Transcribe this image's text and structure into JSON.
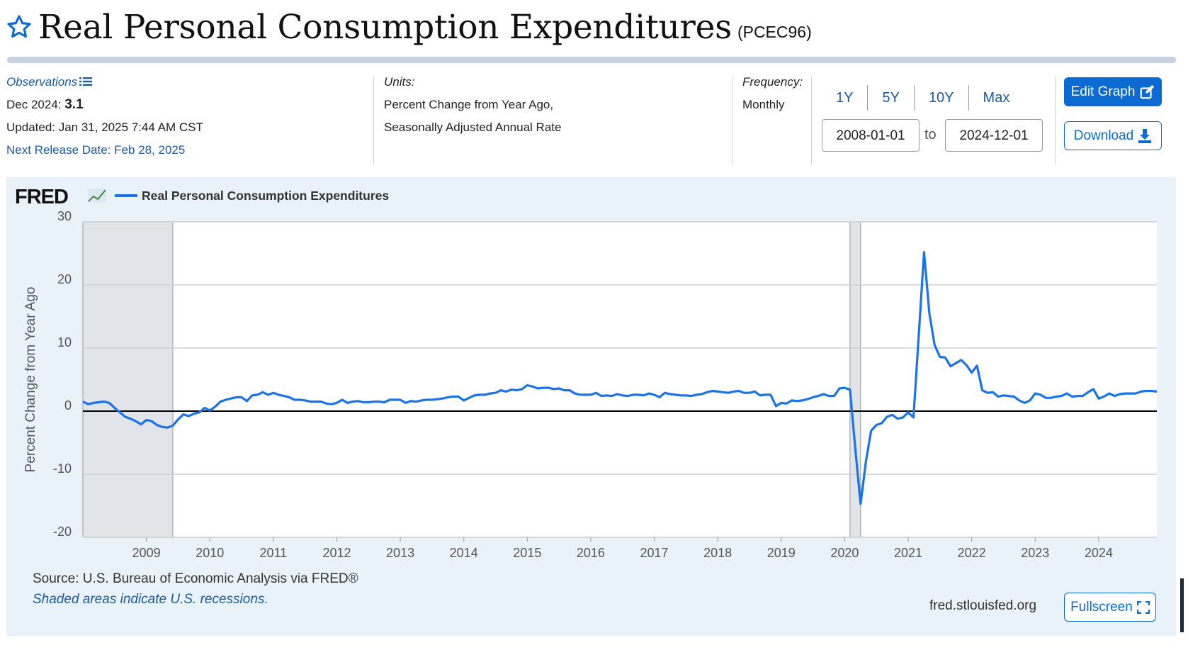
{
  "header": {
    "title": "Real Personal Consumption Expenditures",
    "series_id": "(PCEC96)"
  },
  "meta": {
    "observations_label": "Observations",
    "observation_date": "Dec 2024:",
    "observation_value": "3.1",
    "updated": "Updated: Jan 31, 2025 7:44 AM CST",
    "next_release": "Next Release Date: Feb 28, 2025",
    "units_label": "Units:",
    "units_line1": "Percent Change from Year Ago,",
    "units_line2": "Seasonally Adjusted Annual Rate",
    "frequency_label": "Frequency:",
    "frequency_value": "Monthly"
  },
  "controls": {
    "range_links": [
      "1Y",
      "5Y",
      "10Y",
      "Max"
    ],
    "start_date": "2008-01-01",
    "to_label": "to",
    "end_date": "2024-12-01",
    "edit_graph": "Edit Graph",
    "download": "Download",
    "fullscreen": "Fullscreen"
  },
  "footer": {
    "source": "Source: U.S. Bureau of Economic Analysis via FRED®",
    "recession_note": "Shaded areas indicate U.S. recessions.",
    "url": "fred.stlouisfed.org"
  },
  "colors": {
    "brand_blue": "#0b6bd3",
    "series_line": "#1a73e8",
    "recession_shade": "#e1e5ea",
    "panel_bg": "#e9f1f9"
  },
  "chart_data": {
    "type": "line",
    "logo": "FRED",
    "legend": [
      "Real Personal Consumption Expenditures"
    ],
    "legend_position": "top-left",
    "ylabel": "Percent Change from Year Ago",
    "ylim": [
      -20,
      30
    ],
    "yticks": [
      30,
      20,
      10,
      0,
      -10,
      -20
    ],
    "x_tick_labels": [
      "2009",
      "2010",
      "2011",
      "2012",
      "2013",
      "2014",
      "2015",
      "2016",
      "2017",
      "2018",
      "2019",
      "2020",
      "2021",
      "2022",
      "2023",
      "2024"
    ],
    "x_range": [
      "2008-01-01",
      "2024-12-01"
    ],
    "grid": true,
    "zero_line": true,
    "recessions": [
      {
        "start": "2008-01-01",
        "end": "2009-06-01"
      },
      {
        "start": "2020-02-01",
        "end": "2020-04-01"
      }
    ],
    "series": [
      {
        "name": "Real Personal Consumption Expenditures",
        "points": [
          [
            "2008-01-01",
            1.5
          ],
          [
            "2008-02-01",
            1.1
          ],
          [
            "2008-03-01",
            1.3
          ],
          [
            "2008-04-01",
            1.4
          ],
          [
            "2008-05-01",
            1.5
          ],
          [
            "2008-06-01",
            1.3
          ],
          [
            "2008-07-01",
            0.5
          ],
          [
            "2008-08-01",
            -0.2
          ],
          [
            "2008-09-01",
            -0.9
          ],
          [
            "2008-10-01",
            -1.2
          ],
          [
            "2008-11-01",
            -1.6
          ],
          [
            "2008-12-01",
            -2.1
          ],
          [
            "2009-01-01",
            -1.4
          ],
          [
            "2009-02-01",
            -1.6
          ],
          [
            "2009-03-01",
            -2.2
          ],
          [
            "2009-04-01",
            -2.5
          ],
          [
            "2009-05-01",
            -2.6
          ],
          [
            "2009-06-01",
            -2.3
          ],
          [
            "2009-07-01",
            -1.3
          ],
          [
            "2009-08-01",
            -0.5
          ],
          [
            "2009-09-01",
            -0.8
          ],
          [
            "2009-10-01",
            -0.4
          ],
          [
            "2009-11-01",
            -0.2
          ],
          [
            "2009-12-01",
            0.5
          ],
          [
            "2010-01-01",
            0.1
          ],
          [
            "2010-02-01",
            0.7
          ],
          [
            "2010-03-01",
            1.5
          ],
          [
            "2010-04-01",
            1.8
          ],
          [
            "2010-05-01",
            2.0
          ],
          [
            "2010-06-01",
            2.2
          ],
          [
            "2010-07-01",
            2.2
          ],
          [
            "2010-08-01",
            1.6
          ],
          [
            "2010-09-01",
            2.5
          ],
          [
            "2010-10-01",
            2.6
          ],
          [
            "2010-11-01",
            3.0
          ],
          [
            "2010-12-01",
            2.6
          ],
          [
            "2011-01-01",
            2.9
          ],
          [
            "2011-02-01",
            2.6
          ],
          [
            "2011-03-01",
            2.4
          ],
          [
            "2011-04-01",
            2.2
          ],
          [
            "2011-05-01",
            1.8
          ],
          [
            "2011-06-01",
            1.8
          ],
          [
            "2011-07-01",
            1.7
          ],
          [
            "2011-08-01",
            1.5
          ],
          [
            "2011-09-01",
            1.5
          ],
          [
            "2011-10-01",
            1.5
          ],
          [
            "2011-11-01",
            1.2
          ],
          [
            "2011-12-01",
            1.1
          ],
          [
            "2012-01-01",
            1.3
          ],
          [
            "2012-02-01",
            1.8
          ],
          [
            "2012-03-01",
            1.3
          ],
          [
            "2012-04-01",
            1.5
          ],
          [
            "2012-05-01",
            1.6
          ],
          [
            "2012-06-01",
            1.4
          ],
          [
            "2012-07-01",
            1.4
          ],
          [
            "2012-08-01",
            1.5
          ],
          [
            "2012-09-01",
            1.5
          ],
          [
            "2012-10-01",
            1.4
          ],
          [
            "2012-11-01",
            1.8
          ],
          [
            "2012-12-01",
            1.8
          ],
          [
            "2013-01-01",
            1.8
          ],
          [
            "2013-02-01",
            1.3
          ],
          [
            "2013-03-01",
            1.6
          ],
          [
            "2013-04-01",
            1.5
          ],
          [
            "2013-05-01",
            1.7
          ],
          [
            "2013-06-01",
            1.8
          ],
          [
            "2013-07-01",
            1.8
          ],
          [
            "2013-08-01",
            1.9
          ],
          [
            "2013-09-01",
            2.0
          ],
          [
            "2013-10-01",
            2.2
          ],
          [
            "2013-11-01",
            2.3
          ],
          [
            "2013-12-01",
            2.3
          ],
          [
            "2014-01-01",
            1.7
          ],
          [
            "2014-02-01",
            2.1
          ],
          [
            "2014-03-01",
            2.5
          ],
          [
            "2014-04-01",
            2.6
          ],
          [
            "2014-05-01",
            2.6
          ],
          [
            "2014-06-01",
            2.8
          ],
          [
            "2014-07-01",
            2.9
          ],
          [
            "2014-08-01",
            3.3
          ],
          [
            "2014-09-01",
            3.1
          ],
          [
            "2014-10-01",
            3.4
          ],
          [
            "2014-11-01",
            3.3
          ],
          [
            "2014-12-01",
            3.5
          ],
          [
            "2015-01-01",
            4.1
          ],
          [
            "2015-02-01",
            3.9
          ],
          [
            "2015-03-01",
            3.6
          ],
          [
            "2015-04-01",
            3.7
          ],
          [
            "2015-05-01",
            3.7
          ],
          [
            "2015-06-01",
            3.5
          ],
          [
            "2015-07-01",
            3.6
          ],
          [
            "2015-08-01",
            3.3
          ],
          [
            "2015-09-01",
            3.3
          ],
          [
            "2015-10-01",
            2.8
          ],
          [
            "2015-11-01",
            2.6
          ],
          [
            "2015-12-01",
            2.6
          ],
          [
            "2016-01-01",
            2.6
          ],
          [
            "2016-02-01",
            2.9
          ],
          [
            "2016-03-01",
            2.4
          ],
          [
            "2016-04-01",
            2.5
          ],
          [
            "2016-05-01",
            2.4
          ],
          [
            "2016-06-01",
            2.7
          ],
          [
            "2016-07-01",
            2.5
          ],
          [
            "2016-08-01",
            2.4
          ],
          [
            "2016-09-01",
            2.6
          ],
          [
            "2016-10-01",
            2.6
          ],
          [
            "2016-11-01",
            2.5
          ],
          [
            "2016-12-01",
            2.8
          ],
          [
            "2017-01-01",
            2.6
          ],
          [
            "2017-02-01",
            2.2
          ],
          [
            "2017-03-01",
            2.9
          ],
          [
            "2017-04-01",
            2.7
          ],
          [
            "2017-05-01",
            2.6
          ],
          [
            "2017-06-01",
            2.5
          ],
          [
            "2017-07-01",
            2.5
          ],
          [
            "2017-08-01",
            2.4
          ],
          [
            "2017-09-01",
            2.6
          ],
          [
            "2017-10-01",
            2.7
          ],
          [
            "2017-11-01",
            3.0
          ],
          [
            "2017-12-01",
            3.2
          ],
          [
            "2018-01-01",
            3.1
          ],
          [
            "2018-02-01",
            3.0
          ],
          [
            "2018-03-01",
            2.9
          ],
          [
            "2018-04-01",
            3.1
          ],
          [
            "2018-05-01",
            3.2
          ],
          [
            "2018-06-01",
            2.9
          ],
          [
            "2018-07-01",
            2.9
          ],
          [
            "2018-08-01",
            3.1
          ],
          [
            "2018-09-01",
            2.5
          ],
          [
            "2018-10-01",
            2.6
          ],
          [
            "2018-11-01",
            2.6
          ],
          [
            "2018-12-01",
            0.8
          ],
          [
            "2019-01-01",
            1.3
          ],
          [
            "2019-02-01",
            1.2
          ],
          [
            "2019-03-01",
            1.7
          ],
          [
            "2019-04-01",
            1.6
          ],
          [
            "2019-05-01",
            1.7
          ],
          [
            "2019-06-01",
            1.9
          ],
          [
            "2019-07-01",
            2.2
          ],
          [
            "2019-08-01",
            2.4
          ],
          [
            "2019-09-01",
            2.7
          ],
          [
            "2019-10-01",
            2.4
          ],
          [
            "2019-11-01",
            2.4
          ],
          [
            "2019-12-01",
            3.6
          ],
          [
            "2020-01-01",
            3.7
          ],
          [
            "2020-02-01",
            3.4
          ],
          [
            "2020-03-01",
            -5.9
          ],
          [
            "2020-04-01",
            -14.7
          ],
          [
            "2020-05-01",
            -8.0
          ],
          [
            "2020-06-01",
            -3.1
          ],
          [
            "2020-07-01",
            -2.2
          ],
          [
            "2020-08-01",
            -1.9
          ],
          [
            "2020-09-01",
            -0.9
          ],
          [
            "2020-10-01",
            -0.6
          ],
          [
            "2020-11-01",
            -1.2
          ],
          [
            "2020-12-01",
            -1.0
          ],
          [
            "2021-01-01",
            -0.2
          ],
          [
            "2021-02-01",
            -1.0
          ],
          [
            "2021-03-01",
            12.0
          ],
          [
            "2021-04-01",
            25.2
          ],
          [
            "2021-05-01",
            15.5
          ],
          [
            "2021-06-01",
            10.5
          ],
          [
            "2021-07-01",
            8.6
          ],
          [
            "2021-08-01",
            8.5
          ],
          [
            "2021-09-01",
            7.1
          ],
          [
            "2021-10-01",
            7.6
          ],
          [
            "2021-11-01",
            8.1
          ],
          [
            "2021-12-01",
            7.3
          ],
          [
            "2022-01-01",
            6.1
          ],
          [
            "2022-02-01",
            7.2
          ],
          [
            "2022-03-01",
            3.3
          ],
          [
            "2022-04-01",
            2.9
          ],
          [
            "2022-05-01",
            3.0
          ],
          [
            "2022-06-01",
            2.3
          ],
          [
            "2022-07-01",
            2.5
          ],
          [
            "2022-08-01",
            2.4
          ],
          [
            "2022-09-01",
            2.3
          ],
          [
            "2022-10-01",
            1.7
          ],
          [
            "2022-11-01",
            1.3
          ],
          [
            "2022-12-01",
            1.7
          ],
          [
            "2023-01-01",
            2.8
          ],
          [
            "2023-02-01",
            2.6
          ],
          [
            "2023-03-01",
            2.1
          ],
          [
            "2023-04-01",
            2.1
          ],
          [
            "2023-05-01",
            2.3
          ],
          [
            "2023-06-01",
            2.4
          ],
          [
            "2023-07-01",
            2.8
          ],
          [
            "2023-08-01",
            2.3
          ],
          [
            "2023-09-01",
            2.4
          ],
          [
            "2023-10-01",
            2.4
          ],
          [
            "2023-11-01",
            3.0
          ],
          [
            "2023-12-01",
            3.5
          ],
          [
            "2024-01-01",
            2.0
          ],
          [
            "2024-02-01",
            2.3
          ],
          [
            "2024-03-01",
            2.8
          ],
          [
            "2024-04-01",
            2.4
          ],
          [
            "2024-05-01",
            2.7
          ],
          [
            "2024-06-01",
            2.8
          ],
          [
            "2024-07-01",
            2.8
          ],
          [
            "2024-08-01",
            2.8
          ],
          [
            "2024-09-01",
            3.1
          ],
          [
            "2024-10-01",
            3.2
          ],
          [
            "2024-11-01",
            3.2
          ],
          [
            "2024-12-01",
            3.1
          ]
        ]
      }
    ]
  }
}
